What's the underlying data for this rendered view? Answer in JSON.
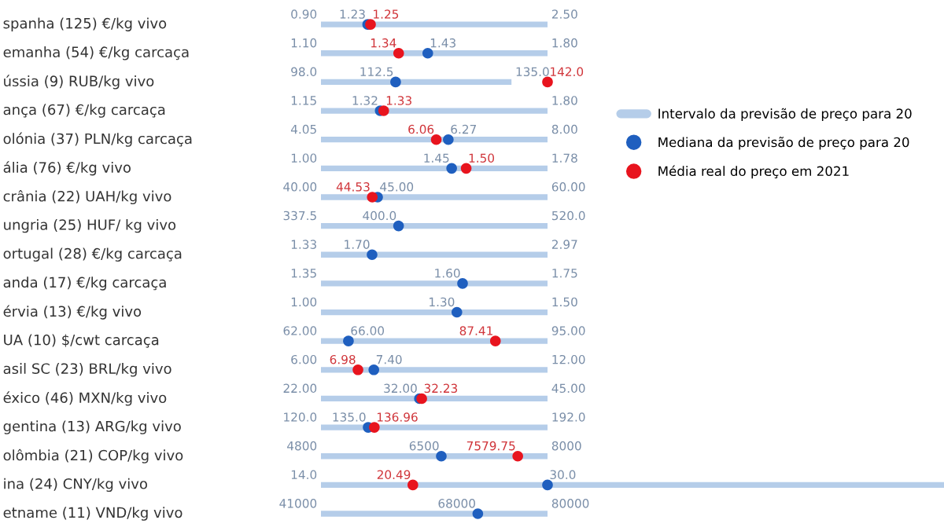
{
  "chart_data": {
    "type": "other",
    "categories": [
      "spanha (125) €/kg vivo",
      "emanha (54) €/kg carcaça",
      "ússia (9) RUB/kg vivo",
      "ança (67) €/kg carcaça",
      "olónia (37) PLN/kg carcaça",
      "ália (76) €/kg vivo",
      "crânia (22) UAH/kg vivo",
      "ungria (25) HUF/ kg vivo",
      "ortugal (28) €/kg carcaça",
      "anda (17) €/kg carcaça",
      "érvia (13) €/kg vivo",
      "UA (10) $/cwt carcaça",
      "asil SC (23) BRL/kg vivo",
      "éxico (46) MXN/kg vivo",
      "gentina (13) ARG/kg vivo",
      "olômbia (21) COP/kg vivo",
      "ina (24) CNY/kg vivo",
      "etname (11) VND/kg vivo"
    ],
    "series": [
      {
        "name": "Intervalo da previsão de preço para 20",
        "color": "#b5cde9",
        "values": [
          0.9,
          1.1,
          98.0,
          1.15,
          4.05,
          1.0,
          40.0,
          337.5,
          1.33,
          1.35,
          1.0,
          62.0,
          6.0,
          22.0,
          120.0,
          4800,
          14.0,
          41000
        ],
        "value_labels": [
          "0.90",
          "1.10",
          "98.0",
          "1.15",
          "4.05",
          "1.00",
          "40.00",
          "337.5",
          "1.33",
          "1.35",
          "1.00",
          "62.00",
          "6.00",
          "22.00",
          "120.0",
          "4800",
          "14.0",
          "41000"
        ]
      },
      {
        "color": "#b5cde9",
        "values": [
          2.5,
          1.8,
          135.0,
          1.8,
          8.0,
          1.78,
          60.0,
          520.0,
          2.97,
          1.75,
          1.5,
          95.0,
          12.0,
          45.0,
          192.0,
          8000,
          null,
          80000
        ],
        "value_labels": [
          "2.50",
          "1.80",
          "135.0",
          "1.80",
          "8.00",
          "1.78",
          "60.00",
          "520.0",
          "2.97",
          "1.75",
          "1.50",
          "95.00",
          "12.00",
          "45.00",
          "192.0",
          "8000",
          null,
          "80000"
        ]
      },
      {
        "name": "Mediana da previsão de preço para 20",
        "color": "#1f5fbf",
        "values": [
          1.23,
          1.43,
          112.5,
          1.32,
          6.27,
          1.45,
          45.0,
          400.0,
          1.7,
          1.6,
          1.3,
          66.0,
          7.4,
          32.0,
          135.0,
          6500,
          30.0,
          68000
        ],
        "value_labels": [
          "1.23",
          "1.43",
          "112.5",
          "1.32",
          "6.27",
          "1.45",
          "45.00",
          "400.0",
          "1.70",
          "1.60",
          "1.30",
          "66.00",
          "7.40",
          "32.00",
          "135.0",
          "6500",
          "30.0",
          "68000"
        ]
      },
      {
        "name": "Média real do preço em 2021",
        "color": "#e8141e",
        "values": [
          1.25,
          1.34,
          142.0,
          1.33,
          6.06,
          1.5,
          44.53,
          null,
          null,
          null,
          null,
          87.41,
          6.98,
          32.23,
          136.96,
          7579.75,
          20.49,
          null
        ],
        "value_labels": [
          "1.25",
          "1.34",
          "142.0",
          "1.33",
          "6.06",
          "1.50",
          "44.53",
          null,
          null,
          null,
          null,
          "87.41",
          "6.98",
          "32.23",
          "136.96",
          "7579.75",
          "20.49",
          null
        ]
      }
    ],
    "data_labels": true,
    "legend": "right"
  }
}
